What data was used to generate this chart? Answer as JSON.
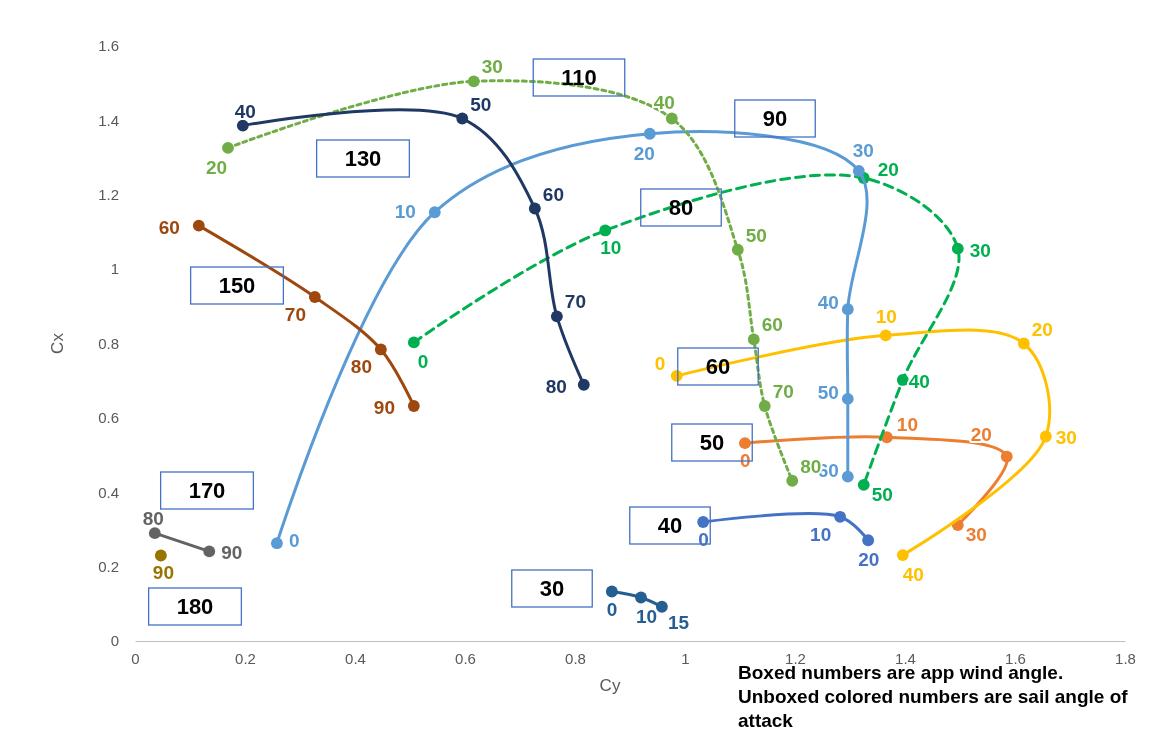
{
  "chart_data": {
    "type": "line",
    "xlabel": "Cy",
    "ylabel": "Cx",
    "xlim": [
      0,
      1.8
    ],
    "xticks": [
      0,
      0.2,
      0.4,
      0.6,
      0.8,
      1,
      1.2,
      1.4,
      1.6,
      1.8
    ],
    "ylim": [
      0,
      1.6
    ],
    "yticks": [
      0,
      0.2,
      0.4,
      0.6,
      0.8,
      1,
      1.2,
      1.4,
      1.6
    ],
    "marker": "circle",
    "line_style": "solid",
    "grid": false,
    "series": [
      {
        "color": "#255e91",
        "x": [
          0.867,
          0.92,
          0.958
        ],
        "values": [
          0.133,
          0.117,
          0.092
        ]
      },
      {
        "color": "#4472c4",
        "x": [
          1.033,
          1.282,
          1.333
        ],
        "values": [
          0.32,
          0.334,
          0.271
        ]
      },
      {
        "color": "#ed7d31",
        "x": [
          1.109,
          1.367,
          1.585,
          1.496
        ],
        "values": [
          0.532,
          0.548,
          0.496,
          0.312
        ]
      },
      {
        "color": "#ffc000",
        "x": [
          0.985,
          1.365,
          1.616,
          1.656,
          1.396
        ],
        "values": [
          0.713,
          0.822,
          0.8,
          0.55,
          0.231
        ]
      },
      {
        "color": "#00b050",
        "line_style": "dashed",
        "x": [
          0.507,
          0.855,
          1.325,
          1.496,
          1.396,
          1.325
        ],
        "values": [
          0.803,
          1.104,
          1.245,
          1.055,
          0.702,
          0.42
        ]
      },
      {
        "color": "#5b9bd5",
        "x": [
          0.258,
          0.545,
          0.936,
          1.316,
          1.296,
          1.296,
          1.296
        ],
        "values": [
          0.263,
          1.153,
          1.364,
          1.264,
          0.892,
          0.651,
          0.442
        ]
      },
      {
        "color": "#70ad47",
        "line_style": "dotted",
        "x": [
          0.169,
          0.616,
          0.976,
          1.096,
          1.125,
          1.145,
          1.195
        ],
        "values": [
          1.326,
          1.505,
          1.405,
          1.052,
          0.811,
          0.632,
          0.431
        ]
      },
      {
        "color": "#203864",
        "x": [
          0.196,
          0.595,
          0.727,
          0.767,
          0.816
        ],
        "values": [
          1.386,
          1.405,
          1.163,
          0.873,
          0.689
        ]
      },
      {
        "color": "#9e480e",
        "x": [
          0.116,
          0.327,
          0.447,
          0.507
        ],
        "values": [
          1.117,
          0.925,
          0.784,
          0.632
        ]
      },
      {
        "color": "#636363",
        "x": [
          0.036,
          0.135
        ],
        "values": [
          0.29,
          0.241
        ]
      },
      {
        "color": "#997300",
        "x": [
          0.047
        ],
        "values": [
          0.23
        ]
      }
    ],
    "annotations": [
      {
        "text": "0",
        "x": 0.867,
        "y": 0.133
      },
      {
        "text": "10",
        "x": 0.92,
        "y": 0.117
      },
      {
        "text": "15",
        "x": 0.958,
        "y": 0.092
      },
      {
        "text": "0",
        "x": 1.033,
        "y": 0.32
      },
      {
        "text": "10",
        "x": 1.282,
        "y": 0.334
      },
      {
        "text": "20",
        "x": 1.333,
        "y": 0.271
      },
      {
        "text": "0",
        "x": 1.109,
        "y": 0.532
      },
      {
        "text": "10",
        "x": 1.367,
        "y": 0.548
      },
      {
        "text": "20",
        "x": 1.585,
        "y": 0.496
      },
      {
        "text": "30",
        "x": 1.496,
        "y": 0.312
      },
      {
        "text": "0",
        "x": 0.985,
        "y": 0.713
      },
      {
        "text": "10",
        "x": 1.365,
        "y": 0.822
      },
      {
        "text": "20",
        "x": 1.616,
        "y": 0.8
      },
      {
        "text": "30",
        "x": 1.656,
        "y": 0.55
      },
      {
        "text": "40",
        "x": 1.396,
        "y": 0.231
      },
      {
        "text": "0",
        "x": 0.507,
        "y": 0.803
      },
      {
        "text": "10",
        "x": 0.855,
        "y": 1.104
      },
      {
        "text": "20",
        "x": 1.325,
        "y": 1.245
      },
      {
        "text": "30",
        "x": 1.496,
        "y": 1.055
      },
      {
        "text": "40",
        "x": 1.396,
        "y": 0.702
      },
      {
        "text": "50",
        "x": 1.325,
        "y": 0.42
      },
      {
        "text": "0",
        "x": 0.258,
        "y": 0.263
      },
      {
        "text": "10",
        "x": 0.545,
        "y": 1.153
      },
      {
        "text": "20",
        "x": 0.936,
        "y": 1.364
      },
      {
        "text": "30",
        "x": 1.316,
        "y": 1.264
      },
      {
        "text": "40",
        "x": 1.296,
        "y": 0.892
      },
      {
        "text": "50",
        "x": 1.296,
        "y": 0.651
      },
      {
        "text": "60",
        "x": 1.296,
        "y": 0.442
      },
      {
        "text": "20",
        "x": 0.169,
        "y": 1.326
      },
      {
        "text": "30",
        "x": 0.616,
        "y": 1.505
      },
      {
        "text": "40",
        "x": 0.976,
        "y": 1.405
      },
      {
        "text": "50",
        "x": 1.096,
        "y": 1.052
      },
      {
        "text": "60",
        "x": 1.125,
        "y": 0.811
      },
      {
        "text": "70",
        "x": 1.145,
        "y": 0.632
      },
      {
        "text": "80",
        "x": 1.195,
        "y": 0.431
      },
      {
        "text": "40",
        "x": 0.196,
        "y": 1.386
      },
      {
        "text": "50",
        "x": 0.595,
        "y": 1.405
      },
      {
        "text": "60",
        "x": 0.727,
        "y": 1.163
      },
      {
        "text": "70",
        "x": 0.767,
        "y": 0.873
      },
      {
        "text": "80",
        "x": 0.816,
        "y": 0.689
      },
      {
        "text": "60",
        "x": 0.116,
        "y": 1.117
      },
      {
        "text": "70",
        "x": 0.327,
        "y": 0.925
      },
      {
        "text": "80",
        "x": 0.447,
        "y": 0.784
      },
      {
        "text": "90",
        "x": 0.507,
        "y": 0.632
      },
      {
        "text": "80",
        "x": 0.036,
        "y": 0.29
      },
      {
        "text": "90",
        "x": 0.135,
        "y": 0.241
      },
      {
        "text": "90",
        "x": 0.047,
        "y": 0.23
      },
      "30",
      "40",
      "50",
      "60",
      "80",
      "90",
      "110",
      "130",
      "150",
      "170",
      "180",
      "Boxed numbers are app wind angle.  Unboxed colored numbers are sail angle of attack"
    ]
  }
}
